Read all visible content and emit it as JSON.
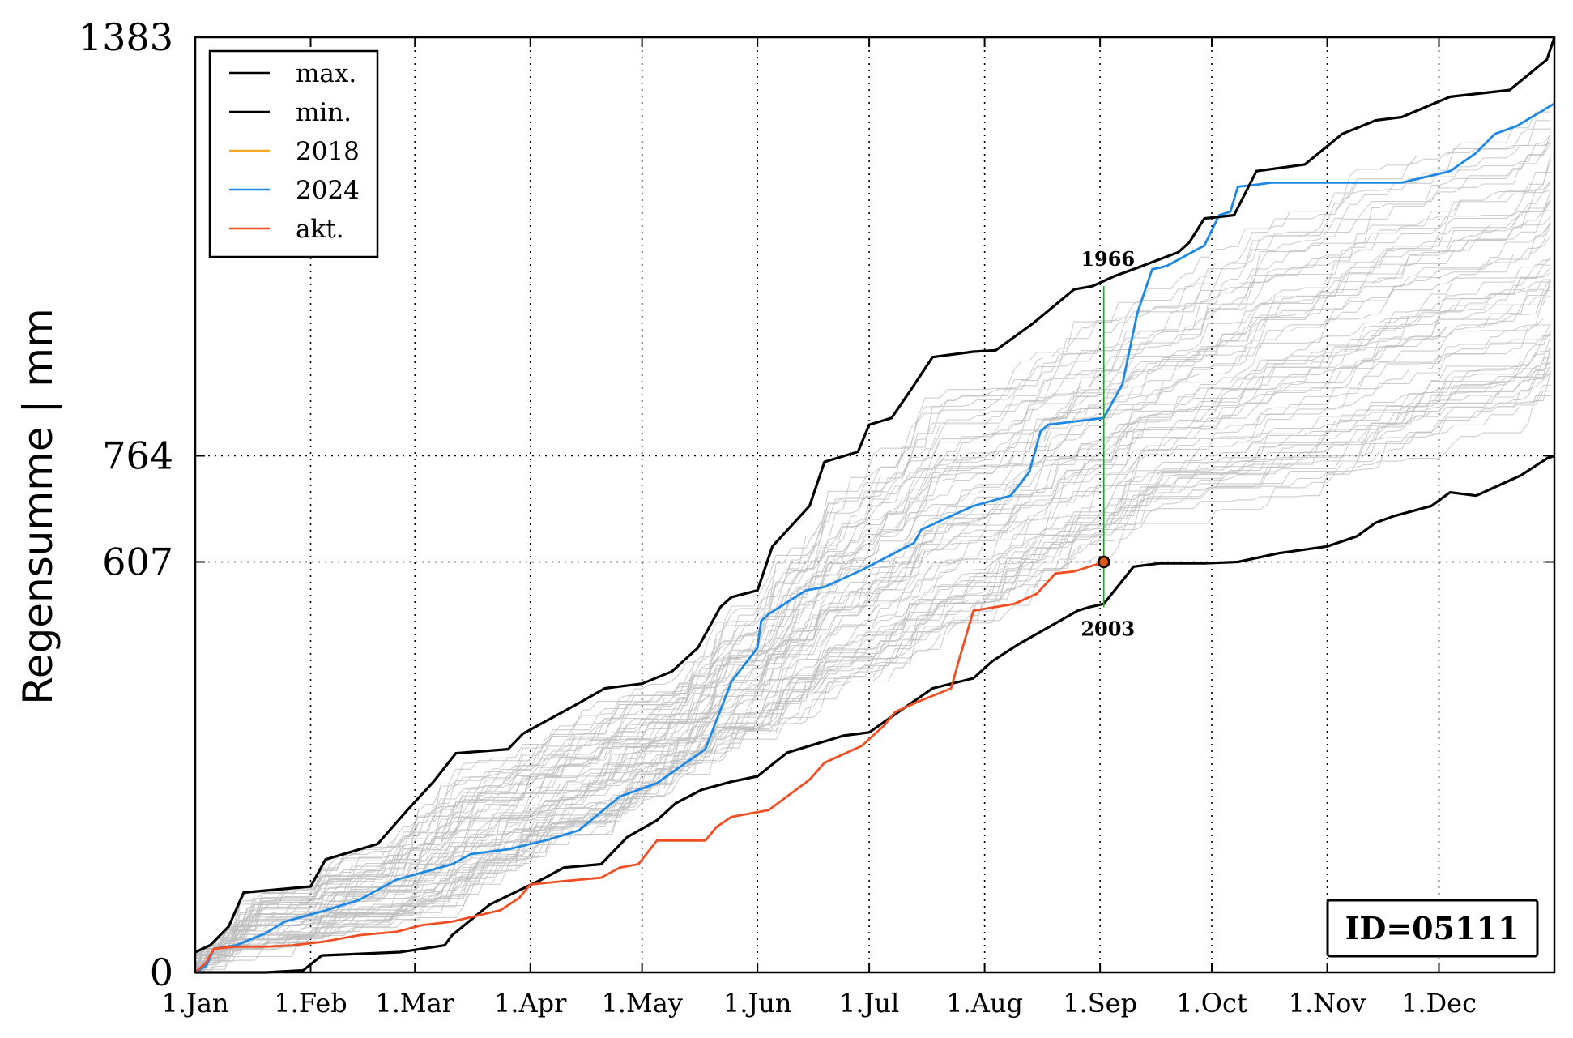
{
  "chart_data": {
    "type": "line",
    "ylabel": "Regensumme | mm",
    "xlabel": "",
    "title": "",
    "ylim": [
      0,
      1383
    ],
    "xlim": [
      1,
      366
    ],
    "y_ticks": [
      0,
      607,
      764,
      1383
    ],
    "y_tick_labels": [
      "0",
      "607",
      "764",
      "1383"
    ],
    "x_ticks": [
      1,
      32,
      60,
      91,
      121,
      152,
      182,
      213,
      244,
      274,
      305,
      335
    ],
    "x_tick_labels": [
      "1.Jan",
      "1.Feb",
      "1.Mar",
      "1.Apr",
      "1.May",
      "1.Jun",
      "1.Jul",
      "1.Aug",
      "1.Sep",
      "1.Oct",
      "1.Nov",
      "1.Dec"
    ],
    "grid": "dotted at ticks",
    "legend": {
      "placement": "top-left",
      "entries": [
        {
          "label": "max.",
          "color": "#000000"
        },
        {
          "label": "min.",
          "color": "#000000"
        },
        {
          "label": "2018",
          "color": "#f5a623"
        },
        {
          "label": "2024",
          "color": "#1e88e5"
        },
        {
          "label": "akt.",
          "color": "#f04e23"
        }
      ]
    },
    "series": [
      {
        "name": "max.",
        "color": "#000000",
        "x": [
          1,
          5,
          10,
          14,
          32,
          36,
          50,
          58,
          65,
          71,
          85,
          89,
          94,
          103,
          111,
          121,
          129,
          136,
          142,
          145,
          152,
          156,
          166,
          170,
          179,
          182,
          188,
          193,
          199,
          210,
          216,
          226,
          237,
          242,
          248,
          253,
          265,
          268,
          272,
          280,
          286,
          299,
          309,
          318,
          325,
          338,
          354,
          364,
          366
        ],
        "y": [
          30,
          40,
          68,
          118,
          127,
          167,
          190,
          240,
          282,
          324,
          330,
          353,
          368,
          395,
          420,
          427,
          445,
          480,
          540,
          555,
          565,
          630,
          690,
          755,
          770,
          810,
          820,
          860,
          910,
          918,
          920,
          960,
          1010,
          1015,
          1030,
          1040,
          1065,
          1080,
          1115,
          1120,
          1185,
          1195,
          1240,
          1260,
          1265,
          1295,
          1305,
          1350,
          1383
        ]
      },
      {
        "name": "min.",
        "color": "#000000",
        "x": [
          1,
          20,
          30,
          35,
          56,
          68,
          70,
          80,
          95,
          100,
          110,
          117,
          125,
          130,
          137,
          145,
          152,
          160,
          175,
          182,
          199,
          210,
          215,
          222,
          238,
          241,
          245,
          253,
          260,
          272,
          281,
          292,
          305,
          313,
          318,
          323,
          333,
          338,
          345,
          353,
          357,
          364,
          366
        ],
        "y": [
          0,
          0,
          3,
          25,
          30,
          40,
          55,
          100,
          140,
          155,
          160,
          200,
          225,
          250,
          270,
          282,
          290,
          325,
          350,
          355,
          420,
          435,
          460,
          485,
          535,
          540,
          545,
          600,
          605,
          605,
          607,
          620,
          630,
          645,
          665,
          675,
          690,
          710,
          705,
          725,
          735,
          760,
          764
        ]
      },
      {
        "name": "2024",
        "color": "#1e88e5",
        "x": [
          1,
          4,
          6,
          12,
          20,
          25,
          35,
          45,
          55,
          70,
          75,
          85,
          95,
          104,
          115,
          125,
          138,
          145,
          152,
          153,
          155,
          165,
          170,
          180,
          194,
          196,
          206,
          210,
          220,
          225,
          228,
          230,
          245,
          250,
          254,
          258,
          260,
          262,
          272,
          276,
          279,
          281,
          286,
          290,
          325,
          338,
          345,
          350,
          356,
          366
        ],
        "y": [
          0,
          10,
          35,
          40,
          58,
          75,
          90,
          107,
          137,
          160,
          175,
          182,
          195,
          210,
          260,
          280,
          330,
          430,
          480,
          520,
          530,
          565,
          570,
          595,
          635,
          655,
          680,
          690,
          705,
          740,
          800,
          810,
          820,
          870,
          975,
          1040,
          1042,
          1045,
          1075,
          1120,
          1125,
          1162,
          1165,
          1168,
          1168,
          1185,
          1212,
          1240,
          1252,
          1285
        ]
      },
      {
        "name": "akt.",
        "color": "#f04e23",
        "x": [
          1,
          4,
          6,
          12,
          20,
          27,
          35,
          45,
          55,
          62,
          70,
          83,
          88,
          91,
          100,
          110,
          115,
          120,
          125,
          138,
          141,
          145,
          155,
          166,
          170,
          180,
          186,
          189,
          195,
          204,
          206,
          210,
          221,
          227,
          232,
          237,
          244,
          245
        ],
        "y": [
          0,
          15,
          35,
          38,
          38,
          40,
          45,
          55,
          60,
          70,
          75,
          92,
          110,
          130,
          135,
          140,
          155,
          160,
          195,
          195,
          215,
          230,
          240,
          285,
          310,
          335,
          365,
          385,
          400,
          420,
          460,
          535,
          545,
          560,
          590,
          593,
          605,
          607
        ]
      }
    ],
    "background_series": {
      "description_count": 60,
      "color": "#bdbdbd"
    },
    "markers": [
      {
        "x": 245,
        "y": 607,
        "label": ""
      }
    ],
    "annotations": [
      {
        "text": "1966",
        "x": 245,
        "y": 1015
      },
      {
        "text": "2003",
        "x": 245,
        "y": 540
      }
    ],
    "marker_vline": {
      "x": 245,
      "y_from": 540,
      "y_to": 1015,
      "color": "#2e9a2e"
    },
    "id_box": "ID=05111"
  }
}
